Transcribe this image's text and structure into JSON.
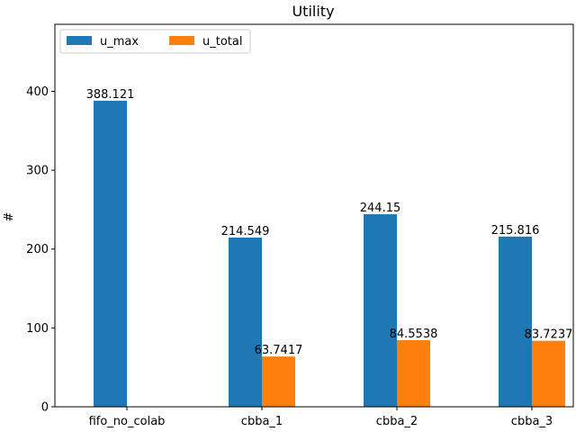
{
  "colors": {
    "u_max": "#1f77b4",
    "u_total": "#ff7f0e"
  },
  "chart_data": {
    "type": "bar",
    "title": "Utility",
    "xlabel": "",
    "ylabel": "#",
    "ylim": [
      0,
      485
    ],
    "yticks": [
      "0",
      "100",
      "200",
      "300",
      "400"
    ],
    "grid": false,
    "legend_placement": "top-left",
    "categories": [
      "fifo_no_colab",
      "cbba_1",
      "cbba_2",
      "cbba_3"
    ],
    "series": [
      {
        "name": "u_max",
        "values": [
          388.121,
          214.549,
          244.15,
          215.816
        ],
        "labels": [
          "388.121",
          "214.549",
          "244.15",
          "215.816"
        ]
      },
      {
        "name": "u_total",
        "values": [
          null,
          63.7417,
          84.5538,
          83.7237
        ],
        "labels": [
          null,
          "63.7417",
          "84.5538",
          "83.7237"
        ]
      }
    ]
  }
}
